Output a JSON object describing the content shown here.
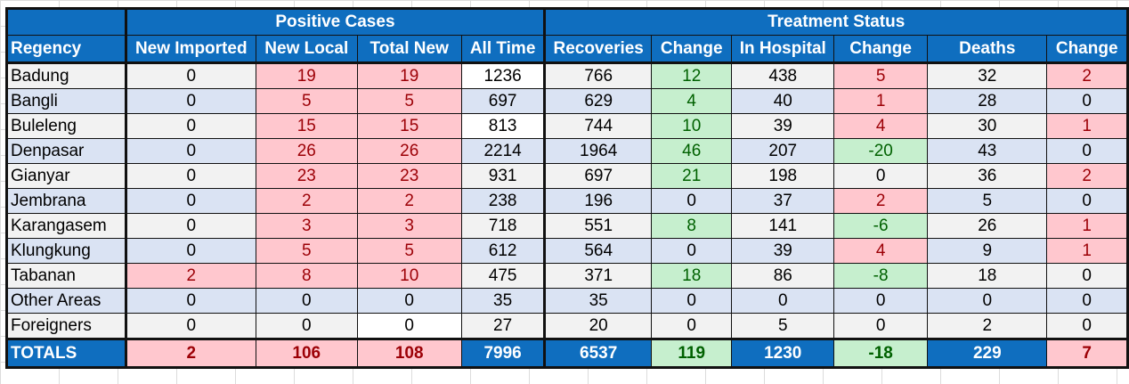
{
  "colors": {
    "header_blue": "#0f6ebf",
    "pink_fill": "#ffc7ce",
    "pink_text": "#9c0006",
    "green_fill": "#c6efce",
    "green_text": "#006100"
  },
  "groups": {
    "positive": "Positive Cases",
    "treatment": "Treatment Status"
  },
  "columns": [
    "Regency",
    "New Imported",
    "New Local",
    "Total New",
    "All Time",
    "Recoveries",
    "Change",
    "In Hospital",
    "Change",
    "Deaths",
    "Change"
  ],
  "rows": [
    {
      "name": "Badung",
      "cells": [
        "0",
        "19",
        "19",
        "1236",
        "766",
        "12",
        "438",
        "5",
        "32",
        "2"
      ],
      "style": [
        "",
        "pink",
        "pink",
        "white",
        "",
        "green",
        "",
        "pink",
        "",
        "pink"
      ]
    },
    {
      "name": "Bangli",
      "cells": [
        "0",
        "5",
        "5",
        "697",
        "629",
        "4",
        "40",
        "1",
        "28",
        "0"
      ],
      "style": [
        "",
        "pink",
        "pink",
        "",
        "",
        "green",
        "",
        "pink",
        "",
        ""
      ]
    },
    {
      "name": "Buleleng",
      "cells": [
        "0",
        "15",
        "15",
        "813",
        "744",
        "10",
        "39",
        "4",
        "30",
        "1"
      ],
      "style": [
        "",
        "pink",
        "pink",
        "white",
        "",
        "green",
        "",
        "pink",
        "",
        "pink"
      ]
    },
    {
      "name": "Denpasar",
      "cells": [
        "0",
        "26",
        "26",
        "2214",
        "1964",
        "46",
        "207",
        "-20",
        "43",
        "0"
      ],
      "style": [
        "",
        "pink",
        "pink",
        "",
        "",
        "green",
        "",
        "green",
        "",
        ""
      ]
    },
    {
      "name": "Gianyar",
      "cells": [
        "0",
        "23",
        "23",
        "931",
        "697",
        "21",
        "198",
        "0",
        "36",
        "2"
      ],
      "style": [
        "",
        "pink",
        "pink",
        "",
        "",
        "green",
        "",
        "",
        "",
        "pink"
      ]
    },
    {
      "name": "Jembrana",
      "cells": [
        "0",
        "2",
        "2",
        "238",
        "196",
        "0",
        "37",
        "2",
        "5",
        "0"
      ],
      "style": [
        "",
        "pink",
        "pink",
        "",
        "",
        "",
        "",
        "pink",
        "",
        ""
      ]
    },
    {
      "name": "Karangasem",
      "cells": [
        "0",
        "3",
        "3",
        "718",
        "551",
        "8",
        "141",
        "-6",
        "26",
        "1"
      ],
      "style": [
        "",
        "pink",
        "pink",
        "",
        "",
        "green",
        "",
        "green",
        "",
        "pink"
      ]
    },
    {
      "name": "Klungkung",
      "cells": [
        "0",
        "5",
        "5",
        "612",
        "564",
        "0",
        "39",
        "4",
        "9",
        "1"
      ],
      "style": [
        "",
        "pink",
        "pink",
        "",
        "",
        "",
        "",
        "pink",
        "",
        "pink"
      ]
    },
    {
      "name": "Tabanan",
      "cells": [
        "2",
        "8",
        "10",
        "475",
        "371",
        "18",
        "86",
        "-8",
        "18",
        "0"
      ],
      "style": [
        "pink",
        "pink",
        "pink",
        "",
        "",
        "green",
        "",
        "green",
        "",
        ""
      ]
    },
    {
      "name": "Other Areas",
      "cells": [
        "0",
        "0",
        "0",
        "35",
        "35",
        "0",
        "0",
        "0",
        "0",
        "0"
      ],
      "style": [
        "",
        "",
        "",
        "",
        "",
        "",
        "",
        "",
        "",
        ""
      ]
    },
    {
      "name": "Foreigners",
      "cells": [
        "0",
        "0",
        "0",
        "27",
        "20",
        "0",
        "5",
        "0",
        "2",
        "0"
      ],
      "style": [
        "",
        "",
        "white",
        "",
        "",
        "",
        "",
        "",
        "",
        ""
      ]
    }
  ],
  "totals": {
    "label": "TOTALS",
    "cells": [
      "2",
      "106",
      "108",
      "7996",
      "6537",
      "119",
      "1230",
      "-18",
      "229",
      "7"
    ],
    "style": [
      "pink",
      "pink",
      "pink",
      "",
      "",
      "green",
      "",
      "green",
      "",
      "pink"
    ]
  }
}
